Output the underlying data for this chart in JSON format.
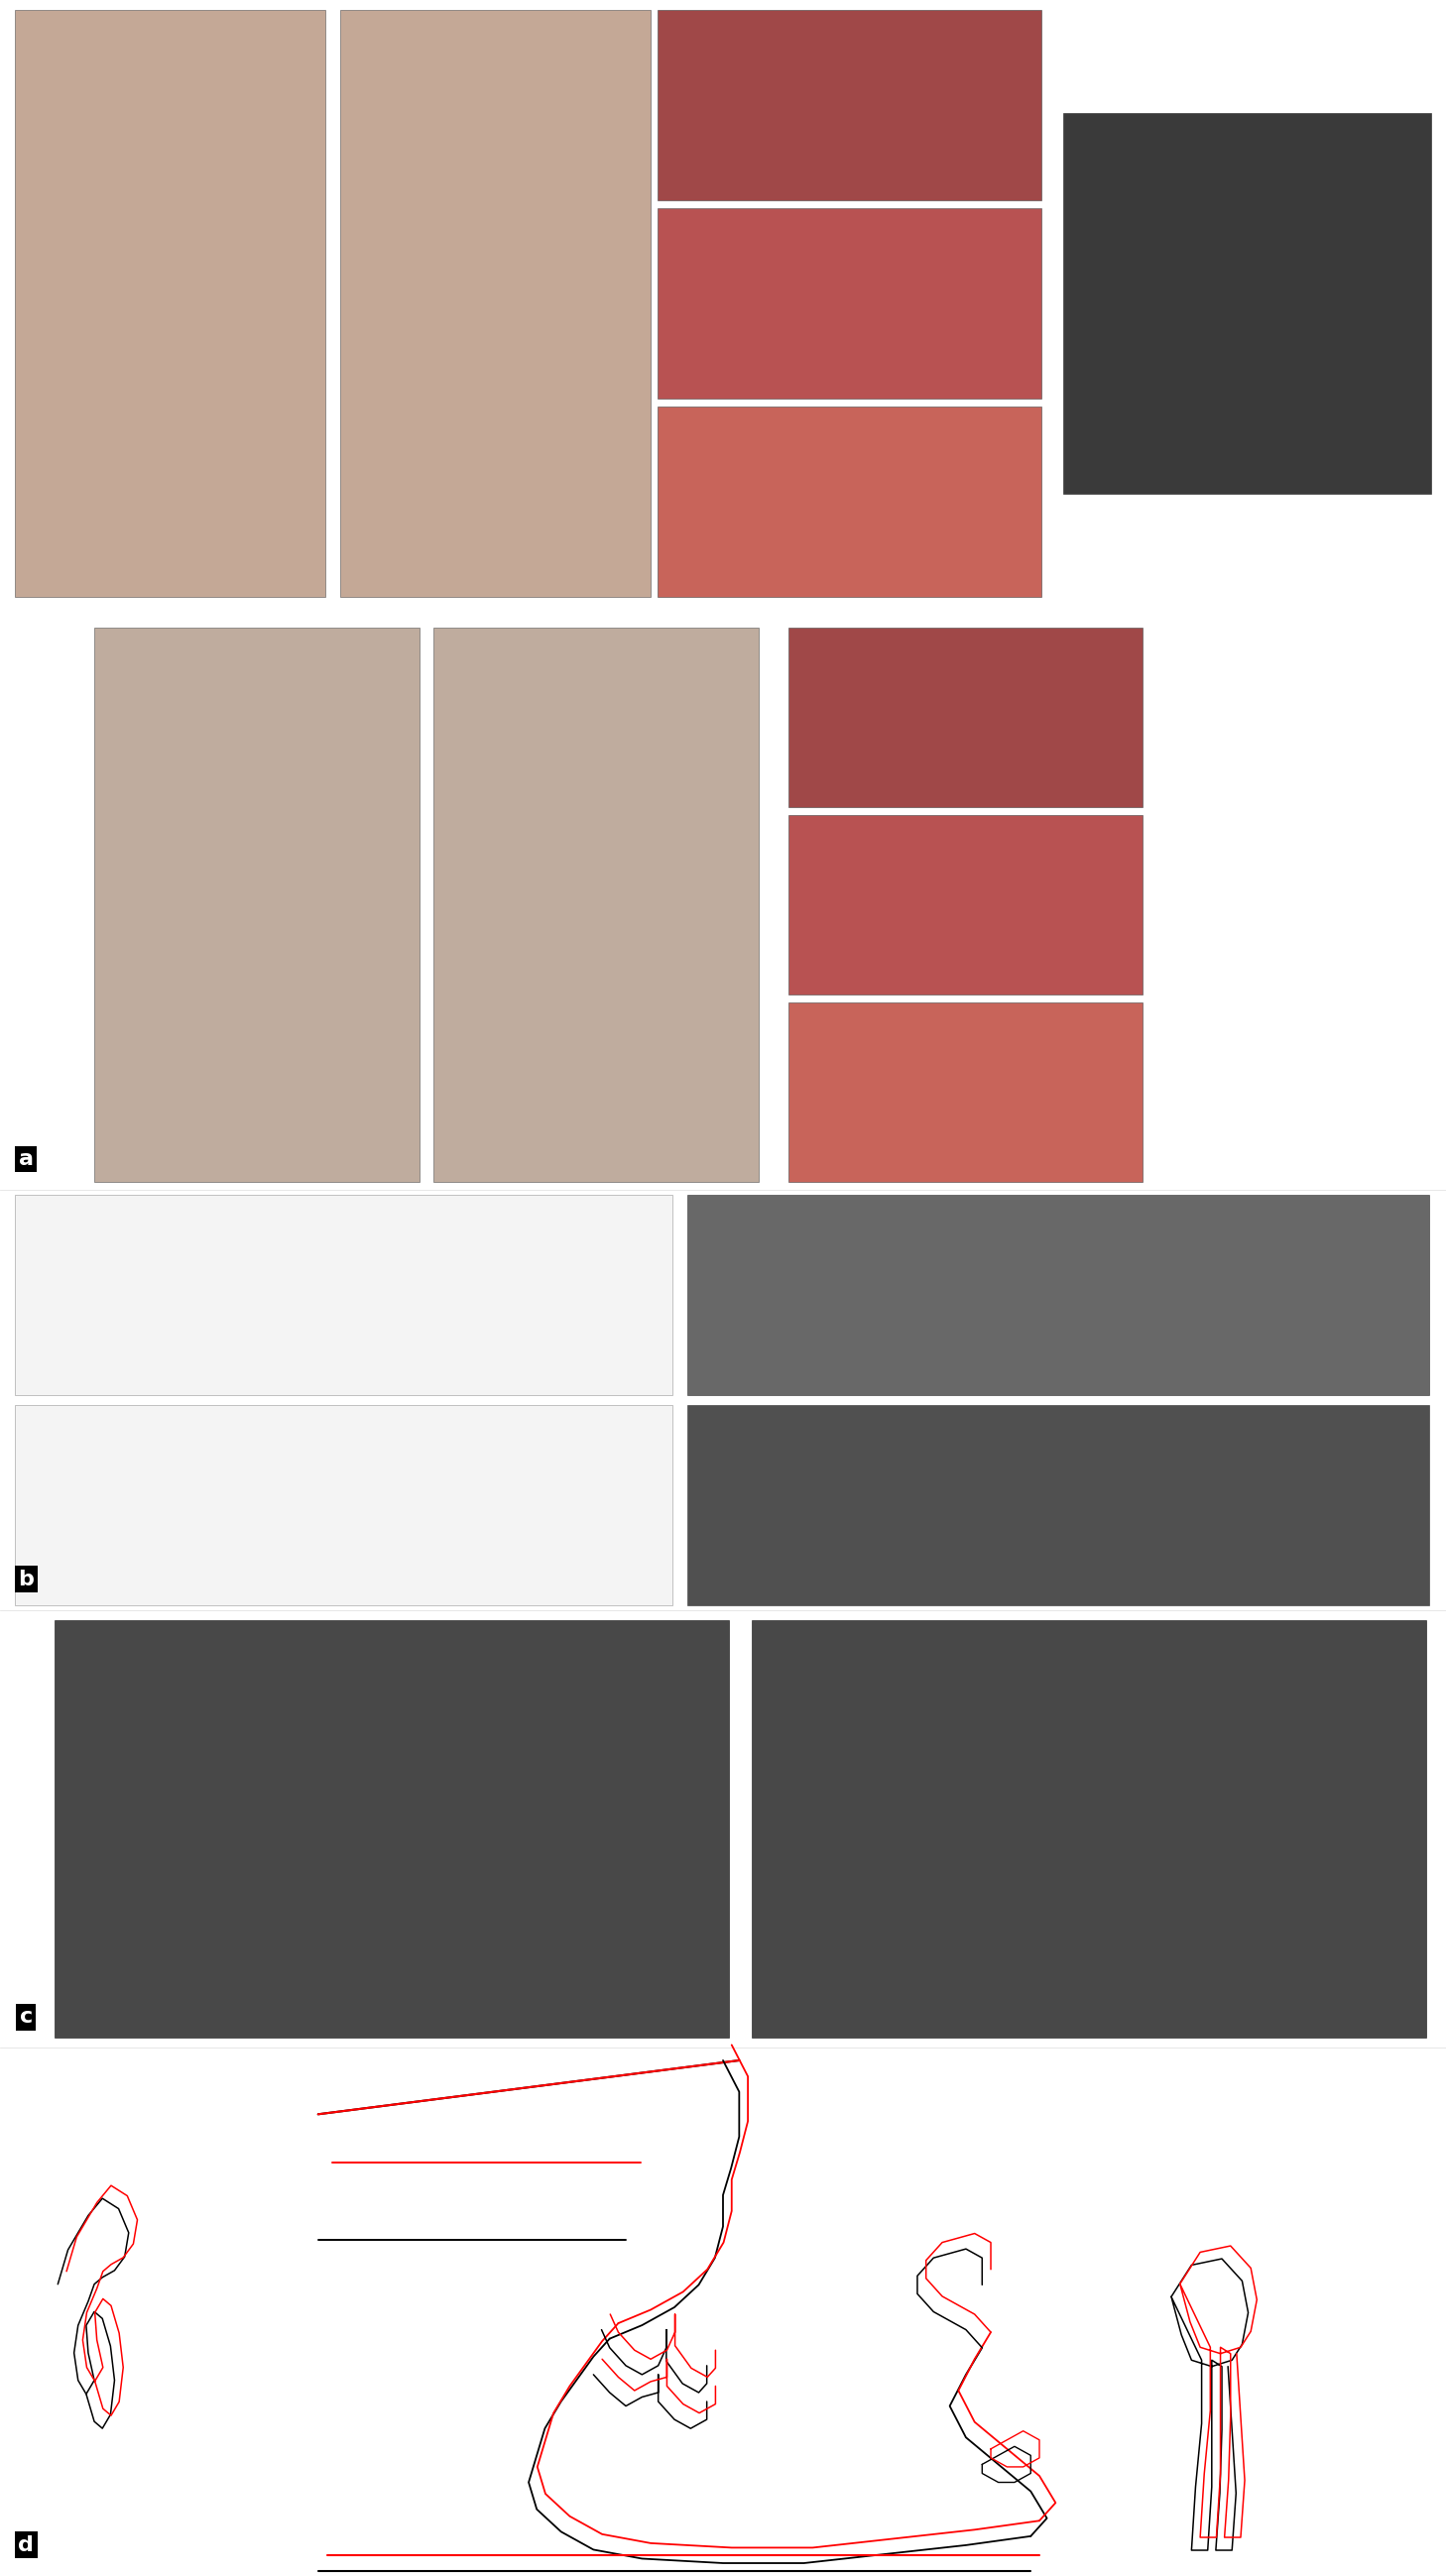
{
  "figure_width": 14.58,
  "figure_height": 25.98,
  "bg_color": "#ffffff",
  "labels": [
    "a",
    "b",
    "c",
    "d"
  ],
  "label_fontsize": 16,
  "section_tops": [
    1.0,
    0.538,
    0.375,
    0.205
  ],
  "section_bots": [
    0.538,
    0.375,
    0.205,
    0.0
  ],
  "colors": {
    "face_skin": "#c4a896",
    "face_skin2": "#bfac9e",
    "intraoral_pink": "#c8645a",
    "intraoral_red": "#b85252",
    "intraoral_dark": "#a04848",
    "cbct_dark": "#3a3a3a",
    "schematic_white": "#f4f4f4",
    "xray_mid": "#686868",
    "xray_dark": "#505050",
    "ceph_gray": "#484848",
    "white": "#ffffff"
  }
}
